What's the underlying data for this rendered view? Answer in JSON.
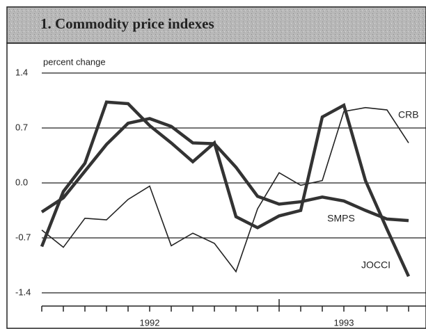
{
  "chart_data": {
    "type": "line",
    "title": "1. Commodity price indexes",
    "y_label": "percent change",
    "categories": [
      null,
      null,
      null,
      null,
      null,
      "1992",
      null,
      null,
      null,
      null,
      null,
      null,
      null,
      null,
      "1993",
      null,
      null,
      null
    ],
    "series": [
      {
        "name": "CRB",
        "color": "#222222",
        "values": [
          -0.6,
          -0.82,
          -0.45,
          -0.47,
          -0.21,
          -0.04,
          -0.8,
          -0.64,
          -0.77,
          -1.13,
          -0.33,
          0.13,
          -0.03,
          0.03,
          0.91,
          0.96,
          0.93,
          0.51
        ]
      },
      {
        "name": "JOCCI",
        "color": "#333333",
        "values": [
          -0.81,
          -0.11,
          0.25,
          1.03,
          1.01,
          0.73,
          0.51,
          0.27,
          0.51,
          -0.43,
          -0.57,
          -0.42,
          -0.35,
          0.84,
          0.99,
          0.03,
          -0.59,
          -1.19
        ]
      },
      {
        "name": "SMPS",
        "color": "#333333",
        "values": [
          -0.37,
          -0.19,
          0.15,
          0.49,
          0.76,
          0.82,
          0.72,
          0.51,
          0.5,
          0.2,
          -0.17,
          -0.27,
          -0.24,
          -0.18,
          -0.23,
          -0.35,
          -0.46,
          -0.48
        ]
      }
    ],
    "ylim": [
      -1.4,
      1.4
    ],
    "yticks": [
      1.4,
      0.7,
      {
        "value": 0,
        "label": "0.0"
      },
      -0.7,
      -1.4
    ],
    "grid": true
  }
}
